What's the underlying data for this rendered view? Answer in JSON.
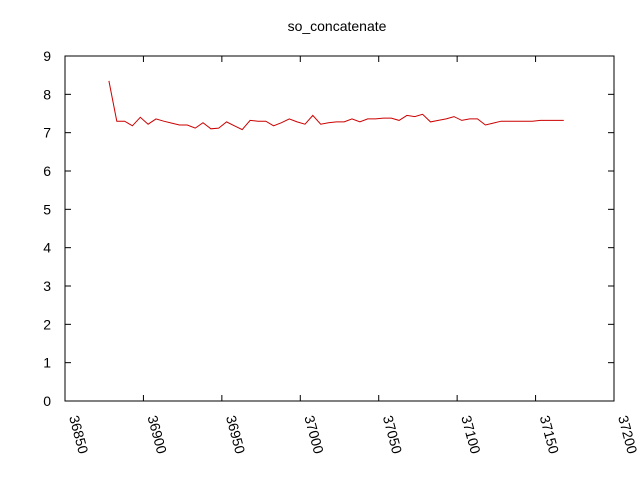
{
  "chart_data": {
    "type": "line",
    "title": "so_concatenate",
    "xlabel": "",
    "ylabel": "",
    "xlim": [
      36850,
      37200
    ],
    "ylim": [
      0,
      9
    ],
    "x_ticks": [
      "36850",
      "36900",
      "36950",
      "37000",
      "37050",
      "37100",
      "37150",
      "37200"
    ],
    "y_ticks": [
      "0",
      "1",
      "2",
      "3",
      "4",
      "5",
      "6",
      "7",
      "8",
      "9"
    ],
    "grid": false,
    "legend": "none",
    "series": [
      {
        "color": "#cc0000",
        "x": [
          36878,
          36883,
          36888,
          36893,
          36898,
          36903,
          36908,
          36913,
          36918,
          36923,
          36928,
          36933,
          36938,
          36943,
          36948,
          36953,
          36958,
          36963,
          36968,
          36973,
          36978,
          36983,
          36988,
          36993,
          36998,
          37003,
          37008,
          37013,
          37018,
          37023,
          37028,
          37033,
          37038,
          37043,
          37048,
          37053,
          37058,
          37063,
          37068,
          37073,
          37078,
          37083,
          37088,
          37093,
          37098,
          37103,
          37108,
          37113,
          37118,
          37123,
          37128,
          37133,
          37138,
          37143,
          37148,
          37153,
          37158,
          37163,
          37168
        ],
        "values": [
          8.35,
          7.3,
          7.3,
          7.18,
          7.4,
          7.22,
          7.36,
          7.3,
          7.25,
          7.2,
          7.2,
          7.12,
          7.26,
          7.1,
          7.12,
          7.28,
          7.18,
          7.08,
          7.32,
          7.3,
          7.3,
          7.18,
          7.26,
          7.36,
          7.28,
          7.22,
          7.45,
          7.22,
          7.26,
          7.28,
          7.28,
          7.36,
          7.28,
          7.36,
          7.36,
          7.38,
          7.38,
          7.32,
          7.45,
          7.42,
          7.48,
          7.28,
          7.32,
          7.36,
          7.42,
          7.32,
          7.36,
          7.36,
          7.2,
          7.25,
          7.3,
          7.3,
          7.3,
          7.3,
          7.3,
          7.32,
          7.32,
          7.32,
          7.32
        ]
      }
    ]
  }
}
